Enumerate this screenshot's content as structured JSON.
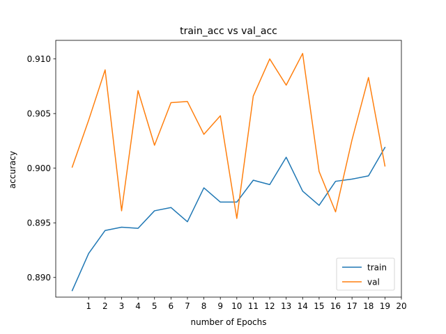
{
  "chart_data": {
    "type": "line",
    "title": "train_acc vs val_acc",
    "xlabel": "number of Epochs",
    "ylabel": "accuracy",
    "xlim": [
      -1,
      20
    ],
    "ylim": [
      0.8882,
      0.9117
    ],
    "x_ticks": [
      1,
      2,
      3,
      4,
      5,
      6,
      7,
      8,
      9,
      10,
      11,
      12,
      13,
      14,
      15,
      16,
      17,
      18,
      19,
      20
    ],
    "y_ticks": [
      0.89,
      0.895,
      0.9,
      0.905,
      0.91
    ],
    "y_tick_labels": [
      "0.890",
      "0.895",
      "0.900",
      "0.905",
      "0.910"
    ],
    "x": [
      0,
      1,
      2,
      3,
      4,
      5,
      6,
      7,
      8,
      9,
      10,
      11,
      12,
      13,
      14,
      15,
      16,
      17,
      18,
      19
    ],
    "series": [
      {
        "name": "train",
        "color": "#1f77b4",
        "values": [
          0.8888,
          0.8922,
          0.8943,
          0.8946,
          0.8945,
          0.8961,
          0.8964,
          0.8951,
          0.8982,
          0.8969,
          0.8969,
          0.8989,
          0.8985,
          0.901,
          0.8979,
          0.8966,
          0.8988,
          0.899,
          0.8993,
          0.9019
        ]
      },
      {
        "name": "val",
        "color": "#ff7f0e",
        "values": [
          0.9001,
          0.9044,
          0.909,
          0.8961,
          0.9071,
          0.9021,
          0.906,
          0.9061,
          0.9031,
          0.9048,
          0.8954,
          0.9066,
          0.91,
          0.9076,
          0.9105,
          0.8997,
          0.896,
          0.9026,
          0.9083,
          0.9002
        ]
      }
    ],
    "legend_position": "lower-right",
    "grid": false
  }
}
